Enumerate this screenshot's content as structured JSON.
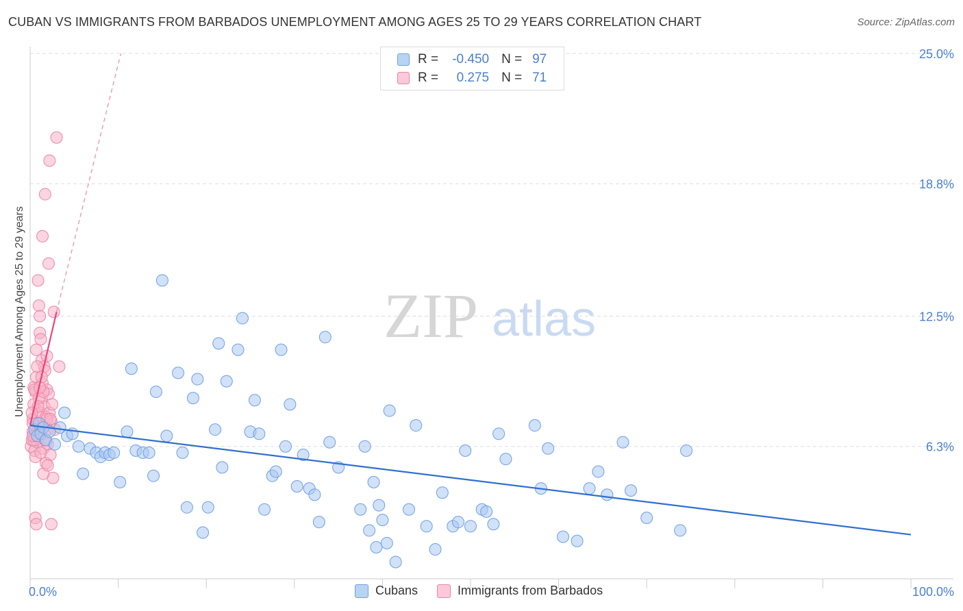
{
  "header": {
    "title": "CUBAN VS IMMIGRANTS FROM BARBADOS UNEMPLOYMENT AMONG AGES 25 TO 29 YEARS CORRELATION CHART",
    "source": "Source: ZipAtlas.com"
  },
  "watermark": {
    "zip": "ZIP",
    "atlas": "atlas"
  },
  "legend_top": {
    "rows": [
      {
        "r_label": "R =",
        "r_value": "-0.450",
        "n_label": "N =",
        "n_value": "97"
      },
      {
        "r_label": "R =",
        "r_value": "0.275",
        "n_label": "N =",
        "n_value": "71"
      }
    ]
  },
  "legend_bottom": {
    "items": [
      {
        "label": "Cubans"
      },
      {
        "label": "Immigrants from Barbados"
      }
    ]
  },
  "colors": {
    "blue_fill": "#a9c8f2",
    "blue_stroke": "#6f9fe0",
    "blue_line": "#2f6fd1",
    "pink_fill": "#f7b3c8",
    "pink_stroke": "#ec86a6",
    "pink_line": "#e5457a",
    "tick_label": "#4a7fd0"
  },
  "chart_data": {
    "type": "scatter",
    "title": "CUBAN VS IMMIGRANTS FROM BARBADOS UNEMPLOYMENT AMONG AGES 25 TO 29 YEARS CORRELATION CHART",
    "xlabel": "",
    "ylabel": "Unemployment Among Ages 25 to 29 years",
    "xlim": [
      0,
      100
    ],
    "ylim": [
      0,
      25.0
    ],
    "x_tick_labels": [
      "0.0%",
      "100.0%"
    ],
    "y_ticks": [
      6.3,
      12.5,
      18.8,
      25.0
    ],
    "y_tick_labels": [
      "6.3%",
      "12.5%",
      "18.8%",
      "25.0%"
    ],
    "grid": true,
    "series": [
      {
        "name": "Cubans",
        "r": -0.45,
        "n": 97,
        "trend": {
          "x": [
            0,
            100
          ],
          "y": [
            7.3,
            2.1
          ]
        },
        "points": [
          [
            0.5,
            7.1
          ],
          [
            0.8,
            6.8
          ],
          [
            1.0,
            7.4
          ],
          [
            1.2,
            6.9
          ],
          [
            1.5,
            7.2
          ],
          [
            1.8,
            6.6
          ],
          [
            2.2,
            7.0
          ],
          [
            2.8,
            6.4
          ],
          [
            3.4,
            7.2
          ],
          [
            3.9,
            7.9
          ],
          [
            4.2,
            6.8
          ],
          [
            4.8,
            6.9
          ],
          [
            5.5,
            6.3
          ],
          [
            6.0,
            5.0
          ],
          [
            6.8,
            6.2
          ],
          [
            7.5,
            6.0
          ],
          [
            8.0,
            5.8
          ],
          [
            8.5,
            6.0
          ],
          [
            9.0,
            5.9
          ],
          [
            9.5,
            6.0
          ],
          [
            10.2,
            4.6
          ],
          [
            11.0,
            7.0
          ],
          [
            11.5,
            10.0
          ],
          [
            12.0,
            6.1
          ],
          [
            12.8,
            6.0
          ],
          [
            13.5,
            6.0
          ],
          [
            14.0,
            4.9
          ],
          [
            14.3,
            8.9
          ],
          [
            15.0,
            14.2
          ],
          [
            15.5,
            6.8
          ],
          [
            16.8,
            9.8
          ],
          [
            17.3,
            6.0
          ],
          [
            17.8,
            3.4
          ],
          [
            18.5,
            8.6
          ],
          [
            19.0,
            9.5
          ],
          [
            19.6,
            2.2
          ],
          [
            20.2,
            3.4
          ],
          [
            21.0,
            7.1
          ],
          [
            21.4,
            11.2
          ],
          [
            21.8,
            5.3
          ],
          [
            22.3,
            9.4
          ],
          [
            23.6,
            10.9
          ],
          [
            24.1,
            12.4
          ],
          [
            25.0,
            7.0
          ],
          [
            25.5,
            8.5
          ],
          [
            26.0,
            6.9
          ],
          [
            26.6,
            3.3
          ],
          [
            27.5,
            4.9
          ],
          [
            27.9,
            5.1
          ],
          [
            28.5,
            10.9
          ],
          [
            29.0,
            6.3
          ],
          [
            29.5,
            8.3
          ],
          [
            30.3,
            4.4
          ],
          [
            31.0,
            5.9
          ],
          [
            31.7,
            4.3
          ],
          [
            32.3,
            4.0
          ],
          [
            32.8,
            2.7
          ],
          [
            33.5,
            11.5
          ],
          [
            34.0,
            6.5
          ],
          [
            35.0,
            5.3
          ],
          [
            37.5,
            3.3
          ],
          [
            38.0,
            6.3
          ],
          [
            38.5,
            2.3
          ],
          [
            39.0,
            4.6
          ],
          [
            39.3,
            1.5
          ],
          [
            39.6,
            3.5
          ],
          [
            40.0,
            2.8
          ],
          [
            40.5,
            1.7
          ],
          [
            40.8,
            8.0
          ],
          [
            41.5,
            0.8
          ],
          [
            43.0,
            3.3
          ],
          [
            43.8,
            7.3
          ],
          [
            45.0,
            2.5
          ],
          [
            46.0,
            1.4
          ],
          [
            46.8,
            4.1
          ],
          [
            48.0,
            2.5
          ],
          [
            48.6,
            2.7
          ],
          [
            49.4,
            6.1
          ],
          [
            50.0,
            2.5
          ],
          [
            51.3,
            3.3
          ],
          [
            51.8,
            3.2
          ],
          [
            52.6,
            2.6
          ],
          [
            53.2,
            6.9
          ],
          [
            54.0,
            5.7
          ],
          [
            57.3,
            7.3
          ],
          [
            58.0,
            4.3
          ],
          [
            58.8,
            6.2
          ],
          [
            60.5,
            2.0
          ],
          [
            62.1,
            1.8
          ],
          [
            63.5,
            4.3
          ],
          [
            64.5,
            5.1
          ],
          [
            65.5,
            4.0
          ],
          [
            67.3,
            6.5
          ],
          [
            68.2,
            4.2
          ],
          [
            70.0,
            2.9
          ],
          [
            73.8,
            2.3
          ],
          [
            74.5,
            6.1
          ]
        ]
      },
      {
        "name": "Immigrants from Barbados",
        "r": 0.275,
        "n": 71,
        "trend": {
          "x": [
            0,
            3.0
          ],
          "y": [
            7.3,
            12.7
          ]
        },
        "trend_extrapolated": {
          "x": [
            3.0,
            10.3
          ],
          "y": [
            12.7,
            25.0
          ]
        },
        "points": [
          [
            0.1,
            6.3
          ],
          [
            0.2,
            6.6
          ],
          [
            0.3,
            7.0
          ],
          [
            0.3,
            7.6
          ],
          [
            0.4,
            8.3
          ],
          [
            0.4,
            9.1
          ],
          [
            0.5,
            6.1
          ],
          [
            0.5,
            6.8
          ],
          [
            0.6,
            7.2
          ],
          [
            0.6,
            8.9
          ],
          [
            0.7,
            9.6
          ],
          [
            0.7,
            10.9
          ],
          [
            0.8,
            6.5
          ],
          [
            0.8,
            7.4
          ],
          [
            0.9,
            8.0
          ],
          [
            0.9,
            14.2
          ],
          [
            1.0,
            6.9
          ],
          [
            1.0,
            13.0
          ],
          [
            1.1,
            12.5
          ],
          [
            1.1,
            11.7
          ],
          [
            1.2,
            11.4
          ],
          [
            1.2,
            7.9
          ],
          [
            1.3,
            10.4
          ],
          [
            1.3,
            8.6
          ],
          [
            1.4,
            16.3
          ],
          [
            1.4,
            9.3
          ],
          [
            1.5,
            7.3
          ],
          [
            1.5,
            6.2
          ],
          [
            1.6,
            10.1
          ],
          [
            1.6,
            8.2
          ],
          [
            1.7,
            18.3
          ],
          [
            1.7,
            9.9
          ],
          [
            1.8,
            7.7
          ],
          [
            1.8,
            5.5
          ],
          [
            1.9,
            10.6
          ],
          [
            1.9,
            9.0
          ],
          [
            2.0,
            7.1
          ],
          [
            2.0,
            6.4
          ],
          [
            2.1,
            15.0
          ],
          [
            2.1,
            8.8
          ],
          [
            2.2,
            19.9
          ],
          [
            2.2,
            7.9
          ],
          [
            2.3,
            5.9
          ],
          [
            2.4,
            7.5
          ],
          [
            2.5,
            8.3
          ],
          [
            2.6,
            4.8
          ],
          [
            2.7,
            12.7
          ],
          [
            2.8,
            7.1
          ],
          [
            3.0,
            21.0
          ],
          [
            3.3,
            10.1
          ],
          [
            0.6,
            2.9
          ],
          [
            0.7,
            2.6
          ],
          [
            1.5,
            5.0
          ],
          [
            2.4,
            2.6
          ],
          [
            0.3,
            7.4
          ],
          [
            0.4,
            6.6
          ],
          [
            0.5,
            9.0
          ],
          [
            0.6,
            5.8
          ],
          [
            0.8,
            10.1
          ],
          [
            1.0,
            8.6
          ],
          [
            1.2,
            6.0
          ],
          [
            1.3,
            9.6
          ],
          [
            1.5,
            8.9
          ],
          [
            1.7,
            6.6
          ],
          [
            1.9,
            7.6
          ],
          [
            2.0,
            5.4
          ],
          [
            2.3,
            7.6
          ],
          [
            0.9,
            8.2
          ],
          [
            1.1,
            9.1
          ],
          [
            0.2,
            7.9
          ],
          [
            0.3,
            6.8
          ]
        ]
      }
    ]
  }
}
